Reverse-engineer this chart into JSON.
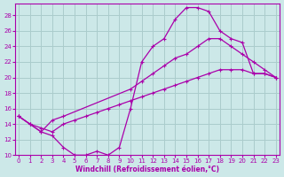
{
  "xlabel": "Windchill (Refroidissement éolien,°C)",
  "bg_color": "#cce8e8",
  "grid_color": "#aacccc",
  "line_color": "#aa00aa",
  "xlim": [
    -0.3,
    23.3
  ],
  "ylim": [
    10,
    29.5
  ],
  "yticks": [
    10,
    12,
    14,
    16,
    18,
    20,
    22,
    24,
    26,
    28
  ],
  "xticks": [
    0,
    1,
    2,
    3,
    4,
    5,
    6,
    7,
    8,
    9,
    10,
    11,
    12,
    13,
    14,
    15,
    16,
    17,
    18,
    19,
    20,
    21,
    22,
    23
  ],
  "line1_x": [
    0,
    1,
    2,
    3,
    4,
    5,
    6,
    7,
    8,
    9,
    10,
    11,
    12,
    13,
    14,
    15,
    16,
    17,
    18,
    19,
    20,
    21,
    22,
    23
  ],
  "line1_y": [
    15,
    14,
    13,
    12.5,
    11,
    10,
    10,
    10.5,
    10,
    11,
    16,
    22,
    24,
    25,
    27.5,
    29,
    29,
    28.5,
    26,
    25,
    24.5,
    20.5,
    20.5,
    20
  ],
  "line2_x": [
    0,
    1,
    2,
    3,
    4,
    10,
    11,
    12,
    13,
    14,
    15,
    16,
    17,
    18,
    19,
    20,
    21,
    22,
    23
  ],
  "line2_y": [
    15,
    14,
    13,
    14.5,
    15,
    18.5,
    19.5,
    20.5,
    21.5,
    22.5,
    23,
    24,
    25,
    25,
    24,
    23,
    22,
    21,
    20
  ],
  "line3_x": [
    0,
    1,
    2,
    3,
    4,
    5,
    6,
    7,
    8,
    9,
    10,
    11,
    12,
    13,
    14,
    15,
    16,
    17,
    18,
    19,
    20,
    21,
    22,
    23
  ],
  "line3_y": [
    15,
    14,
    13.5,
    13,
    14,
    14.5,
    15,
    15.5,
    16,
    16.5,
    17,
    17.5,
    18,
    18.5,
    19,
    19.5,
    20,
    20.5,
    21,
    21,
    21,
    20.5,
    20.5,
    20
  ]
}
